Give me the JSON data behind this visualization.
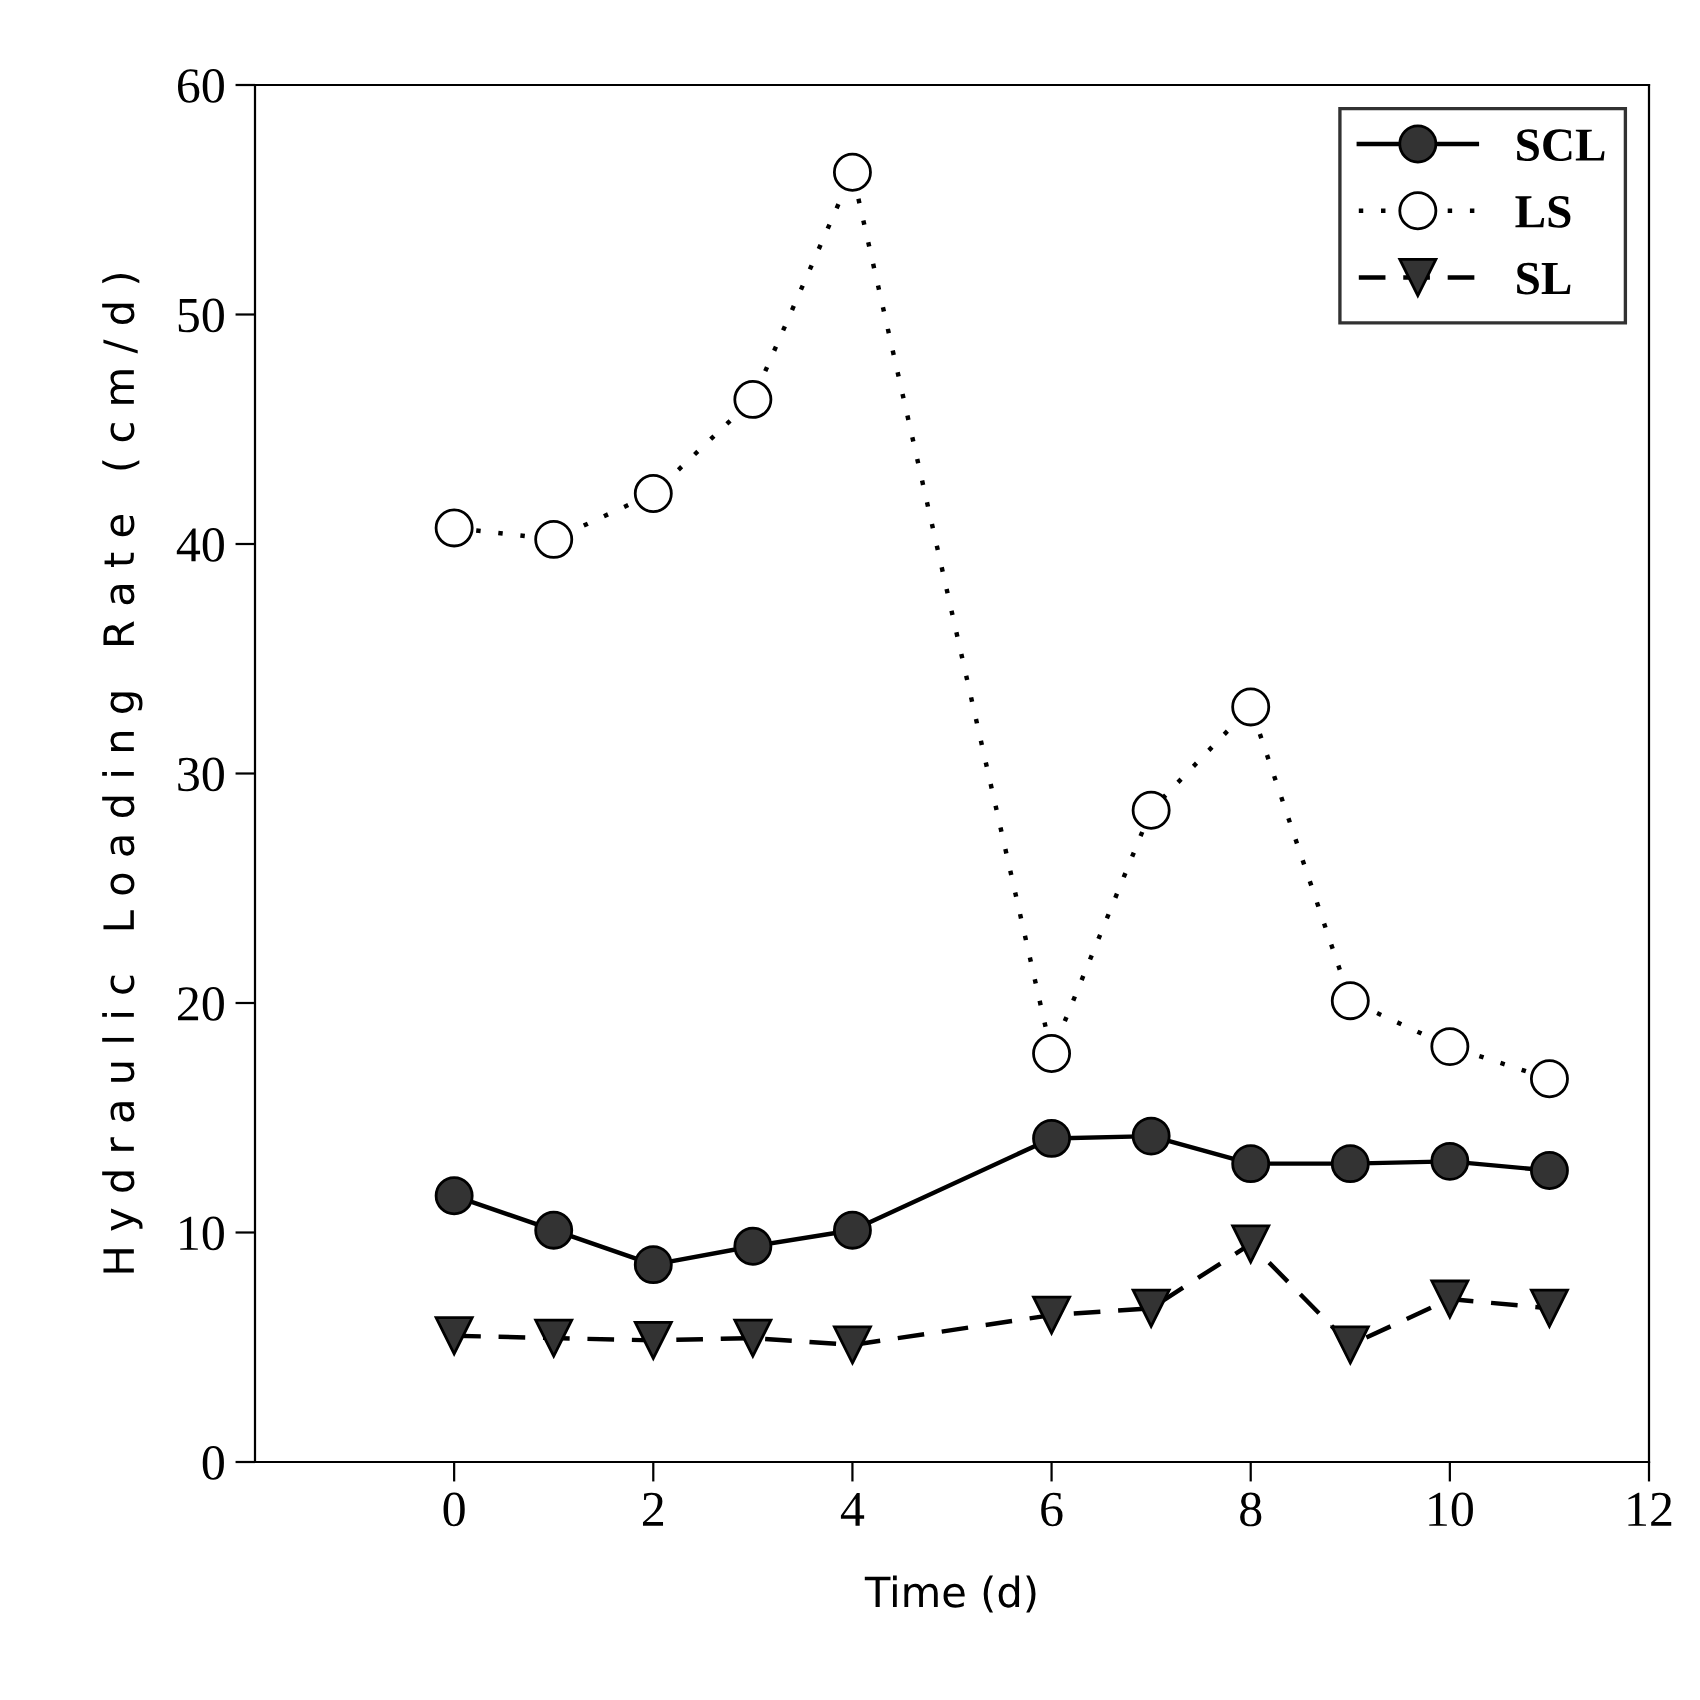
{
  "chart_data": {
    "type": "line",
    "xlabel": "Time (d)",
    "ylabel": "H y d r a u l i c   L o a d i n g   R a t e   ( c m / d )",
    "x": [
      0,
      1,
      2,
      3,
      4,
      6,
      7,
      8,
      9,
      10,
      11
    ],
    "series": [
      {
        "name": "SCL",
        "color": "#000000",
        "marker": "circle",
        "line_style": "solid",
        "values": [
          11.6,
          10.1,
          8.6,
          9.4,
          10.1,
          14.1,
          14.2,
          13.0,
          13.0,
          13.1,
          12.7
        ]
      },
      {
        "name": "LS",
        "color": "#000000",
        "marker": "circle",
        "line_style": "dotted",
        "values": [
          40.7,
          40.2,
          42.2,
          46.3,
          56.2,
          17.8,
          28.4,
          32.9,
          20.1,
          18.1,
          16.7
        ]
      },
      {
        "name": "SL",
        "color": "#000000",
        "marker": "triangle",
        "line_style": "dashed",
        "values": [
          5.5,
          5.4,
          5.3,
          5.4,
          5.1,
          6.4,
          6.7,
          9.5,
          5.1,
          7.1,
          6.7
        ]
      }
    ],
    "xlim": [
      -2,
      12
    ],
    "xticks": [
      0,
      2,
      4,
      6,
      8,
      10,
      12
    ],
    "ylim": [
      0,
      60
    ],
    "yticks": [
      0,
      10,
      20,
      30,
      40,
      50,
      60
    ],
    "grid": false,
    "legend": "top right"
  }
}
